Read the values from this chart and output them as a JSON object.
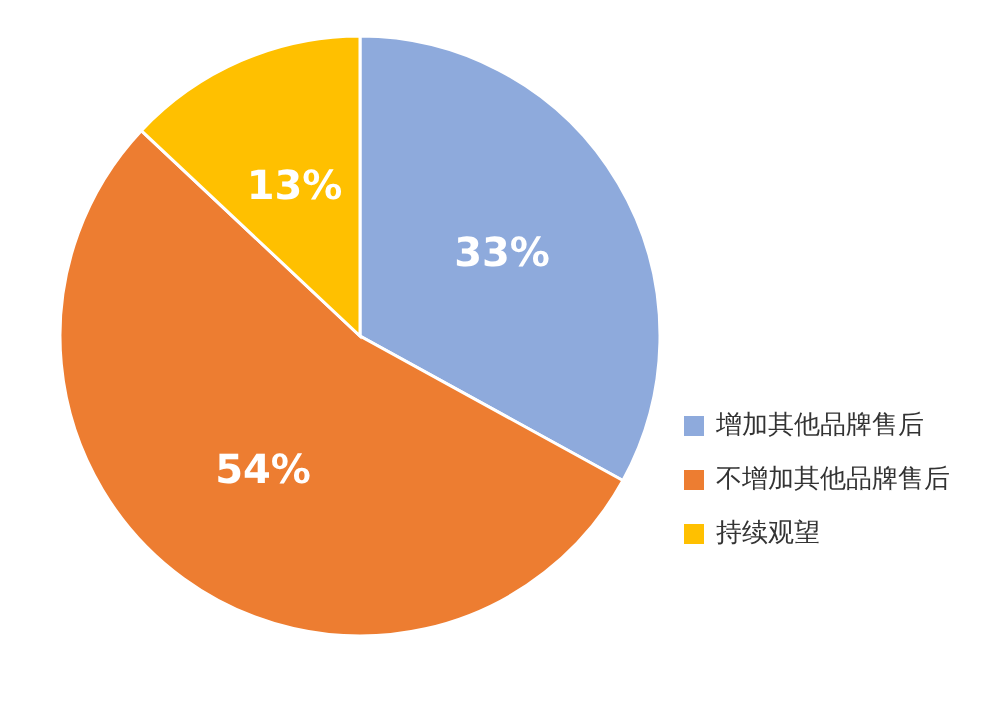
{
  "chart_data": {
    "type": "pie",
    "categories": [
      "增加其他品牌售后",
      "不增加其他品牌售后",
      "持续观望"
    ],
    "values": [
      33,
      54,
      13
    ],
    "colors": [
      "#8eaadc",
      "#ed7d31",
      "#ffc000"
    ],
    "value_labels": [
      "33%",
      "54%",
      "13%"
    ],
    "legend": "bottom right"
  }
}
